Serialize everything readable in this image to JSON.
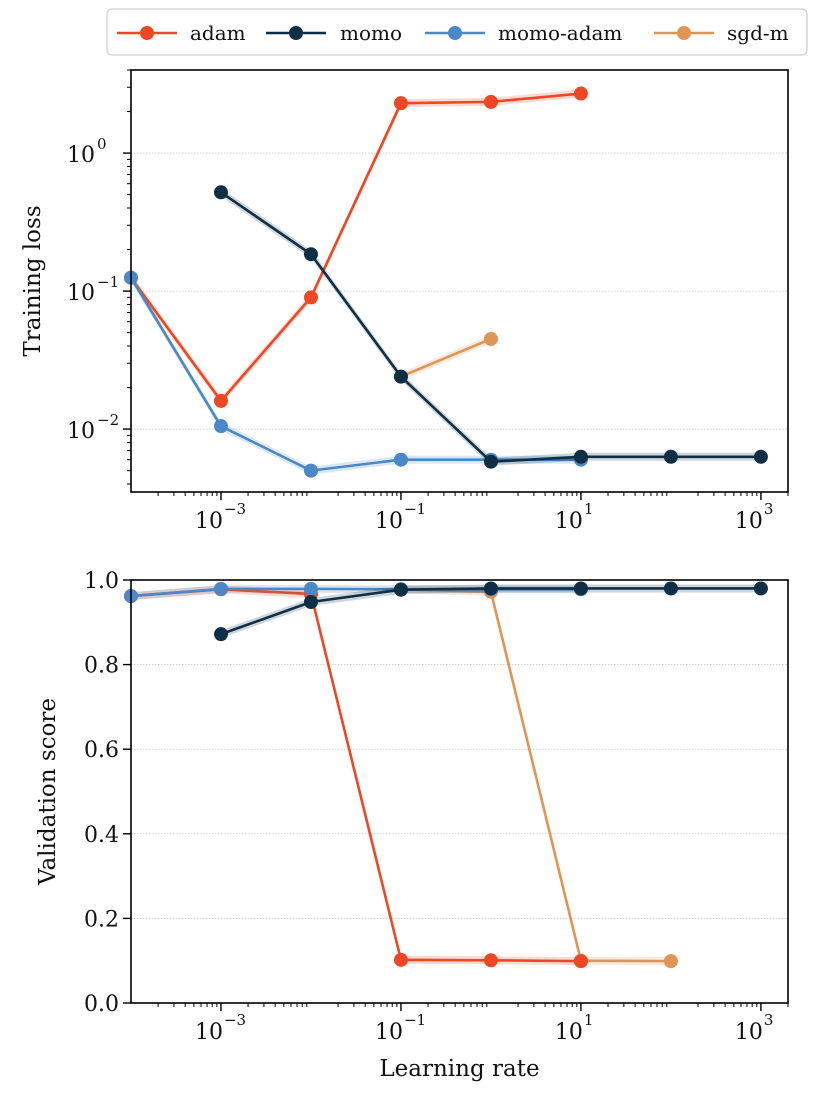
{
  "chart_data": [
    {
      "type": "line",
      "xscale": "log",
      "yscale": "log",
      "ylabel": "Training loss",
      "xlabel": "",
      "xlim": [
        0.0001,
        2000
      ],
      "ylim": [
        0.0035,
        4
      ],
      "grid": "horizontal",
      "xticks": [
        {
          "value": 0.001,
          "base": "10",
          "exp": "−3"
        },
        {
          "value": 0.1,
          "base": "10",
          "exp": "−1"
        },
        {
          "value": 10,
          "base": "10",
          "exp": "1"
        },
        {
          "value": 1000,
          "base": "10",
          "exp": "3"
        }
      ],
      "yticks": [
        {
          "value": 0.01,
          "base": "10",
          "exp": "−2"
        },
        {
          "value": 0.1,
          "base": "10",
          "exp": "−1"
        },
        {
          "value": 1,
          "base": "10",
          "exp": "0"
        }
      ],
      "series": [
        {
          "name": "sgd-m",
          "x": [
            0.1,
            1
          ],
          "y": [
            0.024,
            0.045
          ]
        },
        {
          "name": "adam",
          "x": [
            0.0001,
            0.001,
            0.01,
            0.1,
            1,
            10
          ],
          "y": [
            0.125,
            0.016,
            0.09,
            2.3,
            2.35,
            2.7
          ]
        },
        {
          "name": "momo-adam",
          "x": [
            0.0001,
            0.001,
            0.01,
            0.1,
            1,
            10
          ],
          "y": [
            0.125,
            0.0105,
            0.005,
            0.006,
            0.006,
            0.006
          ]
        },
        {
          "name": "momo",
          "x": [
            0.001,
            0.01,
            0.1,
            1,
            10,
            100,
            1000
          ],
          "y": [
            0.52,
            0.185,
            0.024,
            0.0058,
            0.0063,
            0.0063,
            0.0063
          ]
        }
      ]
    },
    {
      "type": "line",
      "xscale": "log",
      "yscale": "linear",
      "ylabel": "Validation score",
      "xlabel": "Learning rate",
      "xlim": [
        0.0001,
        2000
      ],
      "ylim": [
        0,
        1
      ],
      "grid": "horizontal",
      "xticks": [
        {
          "value": 0.001,
          "base": "10",
          "exp": "−3"
        },
        {
          "value": 0.1,
          "base": "10",
          "exp": "−1"
        },
        {
          "value": 10,
          "base": "10",
          "exp": "1"
        },
        {
          "value": 1000,
          "base": "10",
          "exp": "3"
        }
      ],
      "yticks": [
        {
          "value": 0.0,
          "label": "0.0"
        },
        {
          "value": 0.2,
          "label": "0.2"
        },
        {
          "value": 0.4,
          "label": "0.4"
        },
        {
          "value": 0.6,
          "label": "0.6"
        },
        {
          "value": 0.8,
          "label": "0.8"
        },
        {
          "value": 1.0,
          "label": "1.0"
        }
      ],
      "series": [
        {
          "name": "sgd-m",
          "x": [
            0.1,
            1,
            10,
            100
          ],
          "y": [
            0.978,
            0.972,
            0.1,
            0.099
          ]
        },
        {
          "name": "adam",
          "x": [
            0.0001,
            0.001,
            0.01,
            0.1,
            1,
            10
          ],
          "y": [
            0.962,
            0.978,
            0.967,
            0.102,
            0.101,
            0.099
          ]
        },
        {
          "name": "momo-adam",
          "x": [
            0.0001,
            0.001,
            0.01,
            0.1,
            1,
            10
          ],
          "y": [
            0.962,
            0.979,
            0.979,
            0.978,
            0.978,
            0.978
          ]
        },
        {
          "name": "momo",
          "x": [
            0.001,
            0.01,
            0.1,
            1,
            10,
            100,
            1000
          ],
          "y": [
            0.872,
            0.948,
            0.977,
            0.98,
            0.98,
            0.98,
            0.98
          ]
        }
      ]
    }
  ],
  "legend": {
    "placement": "top-center",
    "entries": [
      "adam",
      "momo",
      "momo-adam",
      "sgd-m"
    ]
  },
  "colors": {
    "adam": "#ef4723",
    "momo": "#0f2f47",
    "momo-adam": "#4a88c7",
    "sgd-m": "#e29455",
    "grid": "#b8b8b8",
    "axis": "#000000"
  }
}
